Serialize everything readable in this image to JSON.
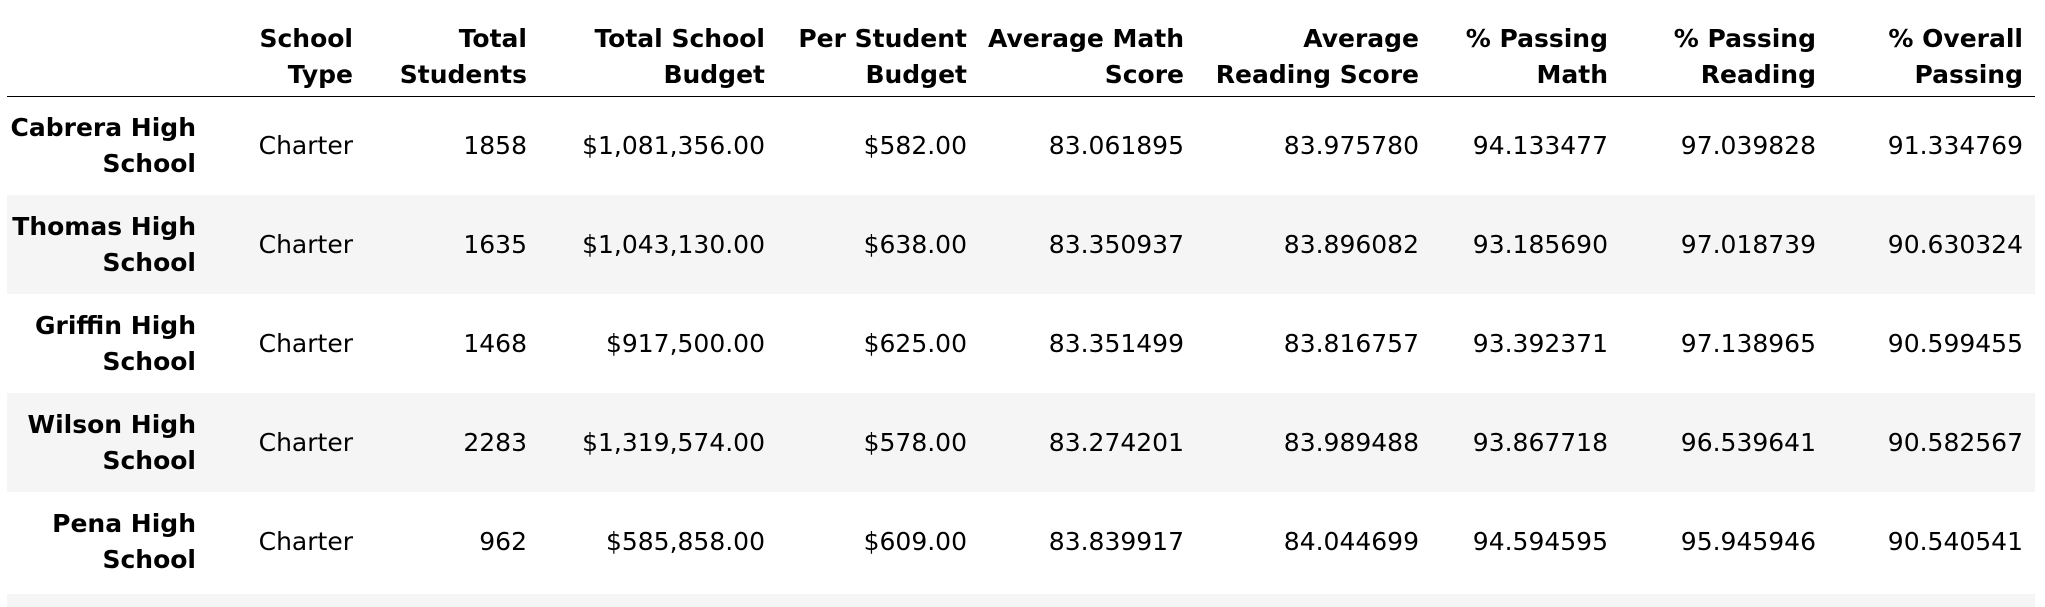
{
  "table": {
    "columns": [
      {
        "key": "index",
        "label": ""
      },
      {
        "key": "school_type",
        "label": "School Type"
      },
      {
        "key": "total_students",
        "label": "Total Students"
      },
      {
        "key": "total_budget",
        "label": "Total School Budget"
      },
      {
        "key": "per_student_budget",
        "label": "Per Student Budget"
      },
      {
        "key": "avg_math",
        "label": "Average Math Score"
      },
      {
        "key": "avg_reading",
        "label": "Average Reading Score"
      },
      {
        "key": "pct_math",
        "label": "% Passing Math"
      },
      {
        "key": "pct_reading",
        "label": "% Passing Reading"
      },
      {
        "key": "pct_overall",
        "label": "% Overall Passing"
      }
    ],
    "rows": [
      {
        "school": "Cabrera High School",
        "school_type": "Charter",
        "total_students": "1858",
        "total_budget": "$1,081,356.00",
        "per_student_budget": "$582.00",
        "avg_math": "83.061895",
        "avg_reading": "83.975780",
        "pct_math": "94.133477",
        "pct_reading": "97.039828",
        "pct_overall": "91.334769"
      },
      {
        "school": "Thomas High School",
        "school_type": "Charter",
        "total_students": "1635",
        "total_budget": "$1,043,130.00",
        "per_student_budget": "$638.00",
        "avg_math": "83.350937",
        "avg_reading": "83.896082",
        "pct_math": "93.185690",
        "pct_reading": "97.018739",
        "pct_overall": "90.630324"
      },
      {
        "school": "Griffin High School",
        "school_type": "Charter",
        "total_students": "1468",
        "total_budget": "$917,500.00",
        "per_student_budget": "$625.00",
        "avg_math": "83.351499",
        "avg_reading": "83.816757",
        "pct_math": "93.392371",
        "pct_reading": "97.138965",
        "pct_overall": "90.599455"
      },
      {
        "school": "Wilson High School",
        "school_type": "Charter",
        "total_students": "2283",
        "total_budget": "$1,319,574.00",
        "per_student_budget": "$578.00",
        "avg_math": "83.274201",
        "avg_reading": "83.989488",
        "pct_math": "93.867718",
        "pct_reading": "96.539641",
        "pct_overall": "90.582567"
      },
      {
        "school": "Pena High School",
        "school_type": "Charter",
        "total_students": "962",
        "total_budget": "$585,858.00",
        "per_student_budget": "$609.00",
        "avg_math": "83.839917",
        "avg_reading": "84.044699",
        "pct_math": "94.594595",
        "pct_reading": "95.945946",
        "pct_overall": "90.540541"
      }
    ]
  },
  "colors": {
    "stripe": "#f5f5f5",
    "header_rule": "#000000",
    "text": "#000000"
  }
}
